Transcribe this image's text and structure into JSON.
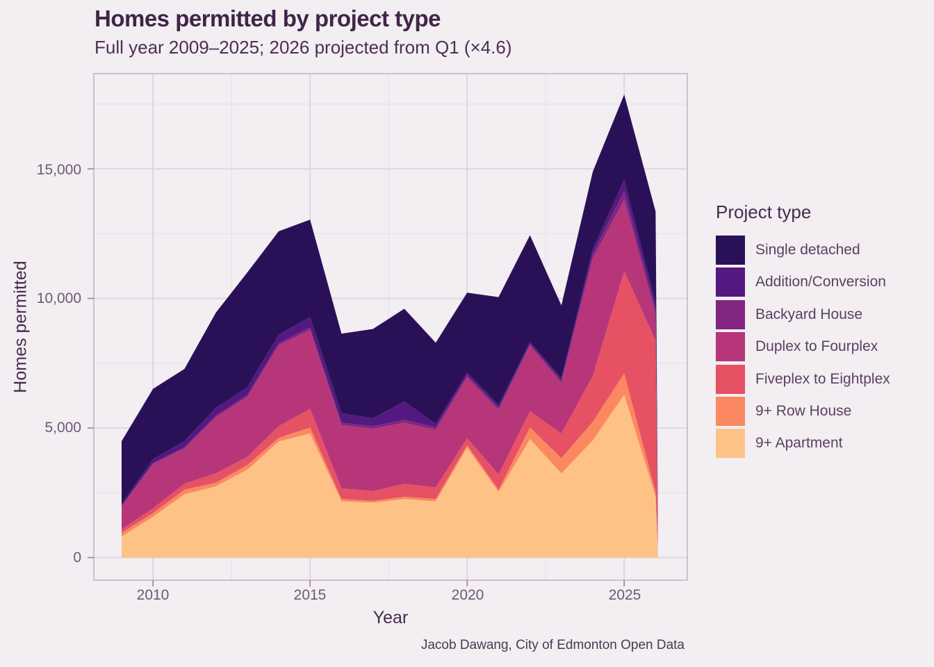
{
  "header": {
    "title": "Homes permitted by project type",
    "subtitle": "Full year 2009–2025; 2026 projected from Q1 (×4.6)"
  },
  "caption": "Jacob Dawang, City of Edmonton Open Data",
  "legend": {
    "title": "Project type"
  },
  "x_axis": {
    "title": "Year",
    "ticks": [
      {
        "label": "2010",
        "value": 2010
      },
      {
        "label": "2015",
        "value": 2015
      },
      {
        "label": "2020",
        "value": 2020
      },
      {
        "label": "2025",
        "value": 2025
      }
    ],
    "minor_values": [
      2012.5,
      2017.5,
      2022.5
    ]
  },
  "y_axis": {
    "title": "Homes permitted",
    "ticks": [
      {
        "label": "0",
        "value": 0
      },
      {
        "label": "5,000",
        "value": 5000
      },
      {
        "label": "10,000",
        "value": 10000
      },
      {
        "label": "15,000",
        "value": 15000
      }
    ],
    "minor_values": [
      2500,
      7500,
      12500,
      17500
    ]
  },
  "colors": {
    "background": "#f2eef2",
    "panel_border": "#cdafcd",
    "grid_major": "#ded2de",
    "grid_minor": "#e8dfe8",
    "tick_mark": "#97819c"
  },
  "chart_data": {
    "type": "area",
    "stacked": true,
    "title": "Homes permitted by project type",
    "xlabel": "Year",
    "ylabel": "Homes permitted",
    "ylim": [
      0,
      18700
    ],
    "grid": true,
    "legend_position": "right",
    "x": [
      2009,
      2010,
      2011,
      2012,
      2013,
      2014,
      2015,
      2016,
      2017,
      2018,
      2019,
      2020,
      2021,
      2022,
      2023,
      2024,
      2025,
      2026
    ],
    "edge_x": 2026.07,
    "series": [
      {
        "name": "Single detached",
        "color": "#2A1157",
        "values": [
          2420,
          2710,
          2790,
          3670,
          4440,
          3990,
          3760,
          3080,
          3440,
          3580,
          3130,
          3080,
          4170,
          4120,
          2810,
          2990,
          3290,
          3530
        ],
        "edge_value": 440
      },
      {
        "name": "Addition/Conversion",
        "color": "#541980",
        "values": [
          80,
          160,
          230,
          300,
          290,
          330,
          400,
          360,
          310,
          700,
          140,
          100,
          100,
          70,
          90,
          180,
          420,
          250
        ],
        "edge_value": 20
      },
      {
        "name": "Backyard House",
        "color": "#822681",
        "values": [
          10,
          20,
          50,
          60,
          70,
          80,
          100,
          90,
          100,
          120,
          90,
          80,
          80,
          70,
          90,
          180,
          350,
          160
        ],
        "edge_value": 10
      },
      {
        "name": "Duplex to Fourplex",
        "color": "#B63679",
        "values": [
          890,
          1720,
          1360,
          2170,
          2310,
          3120,
          3040,
          2440,
          2400,
          2350,
          2220,
          2350,
          2490,
          2530,
          1950,
          4530,
          2760,
          1040
        ],
        "edge_value": 440
      },
      {
        "name": "Fiveplex to Eightplex",
        "color": "#E65164",
        "values": [
          140,
          180,
          230,
          360,
          320,
          450,
          720,
          410,
          380,
          500,
          450,
          270,
          590,
          630,
          950,
          1770,
          3940,
          5840
        ],
        "edge_value": 460
      },
      {
        "name": "9+ Row House",
        "color": "#FB8861",
        "values": [
          140,
          140,
          180,
          140,
          180,
          140,
          230,
          90,
          70,
          90,
          90,
          90,
          90,
          450,
          590,
          720,
          820,
          180
        ],
        "edge_value": 20
      },
      {
        "name": "9+ Apartment",
        "color": "#FEC287",
        "values": [
          810,
          1580,
          2440,
          2750,
          3390,
          4480,
          4790,
          2170,
          2120,
          2260,
          2170,
          4250,
          2530,
          4570,
          3250,
          4520,
          6290,
          2350
        ],
        "edge_value": 350
      }
    ]
  }
}
